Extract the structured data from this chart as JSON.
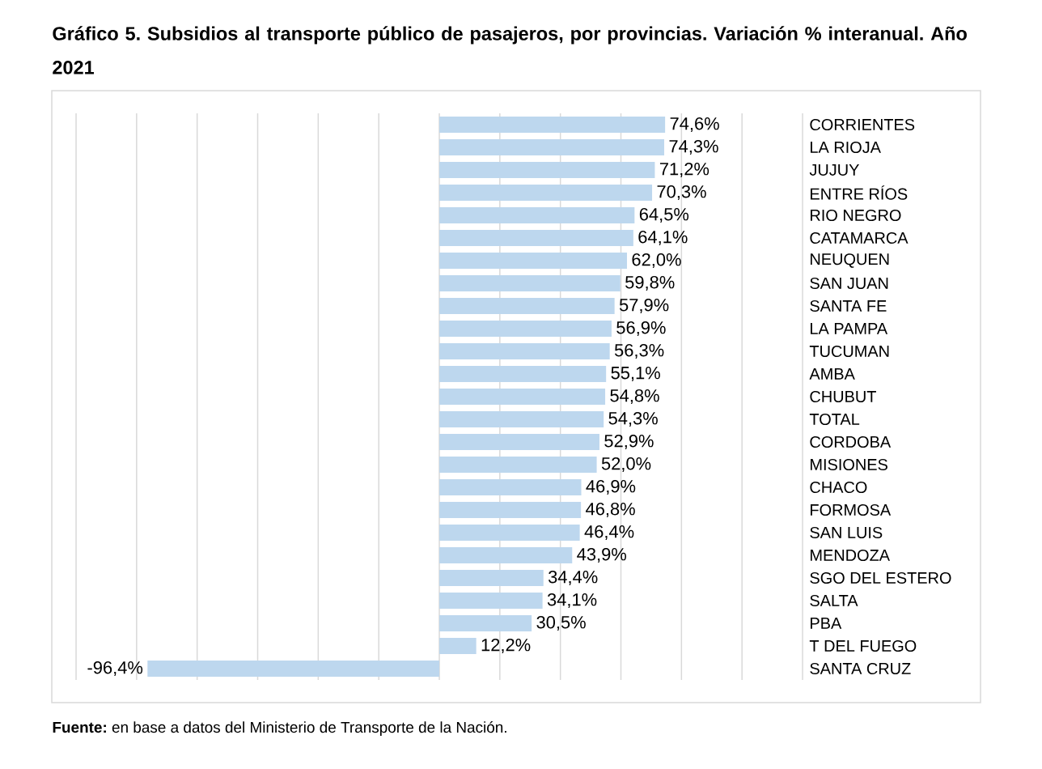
{
  "chart_data": {
    "type": "bar",
    "orientation": "horizontal",
    "title": "Gráfico 5. Subsidios al transporte público de pasajeros, por provincias. Variación % interanual. Año 2021",
    "annotations": [
      "**Fuente:** en base a datos del Ministerio de Transporte de la Nación."
    ],
    "categories": [
      "CORRIENTES",
      "LA RIOJA",
      "JUJUY",
      "ENTRE RÍOS",
      "RIO NEGRO",
      "CATAMARCA",
      "NEUQUEN",
      "SAN JUAN",
      "SANTA FE",
      "LA PAMPA",
      "TUCUMAN",
      "AMBA",
      "CHUBUT",
      "TOTAL",
      "CORDOBA",
      "MISIONES",
      "CHACO",
      "FORMOSA",
      "SAN LUIS",
      "MENDOZA",
      "SGO DEL ESTERO",
      "SALTA",
      "PBA",
      "T DEL FUEGO",
      "SANTA CRUZ"
    ],
    "values": [
      74.6,
      74.3,
      71.2,
      70.3,
      64.5,
      64.1,
      62.0,
      59.8,
      57.9,
      56.9,
      56.3,
      55.1,
      54.8,
      54.3,
      52.9,
      52.0,
      46.9,
      46.8,
      46.4,
      43.9,
      34.4,
      34.1,
      30.5,
      12.2,
      -96.4
    ],
    "value_labels": [
      "74,6%",
      "74,3%",
      "71,2%",
      "70,3%",
      "64,5%",
      "64,1%",
      "62,0%",
      "59,8%",
      "57,9%",
      "56,9%",
      "56,3%",
      "55,1%",
      "54,8%",
      "54,3%",
      "52,9%",
      "52,0%",
      "46,9%",
      "46,8%",
      "46,4%",
      "43,9%",
      "34,4%",
      "34,1%",
      "30,5%",
      "12,2%",
      "-96,4%"
    ],
    "color": "#bdd7ee",
    "xlim": [
      -120,
      120
    ],
    "xticks": [
      {
        "value": -120,
        "label": null
      },
      {
        "value": -100,
        "label": null
      },
      {
        "value": -80,
        "label": null
      },
      {
        "value": -60,
        "label": null
      },
      {
        "value": -40,
        "label": null
      },
      {
        "value": -20,
        "label": null
      },
      {
        "value": 0,
        "label": null
      },
      {
        "value": 20,
        "label": null
      },
      {
        "value": 40,
        "label": null
      },
      {
        "value": 60,
        "label": null
      },
      {
        "value": 80,
        "label": null
      },
      {
        "value": 100,
        "label": null
      },
      {
        "value": 120,
        "label": null
      }
    ],
    "grid": "x",
    "tick_labels": "y"
  }
}
